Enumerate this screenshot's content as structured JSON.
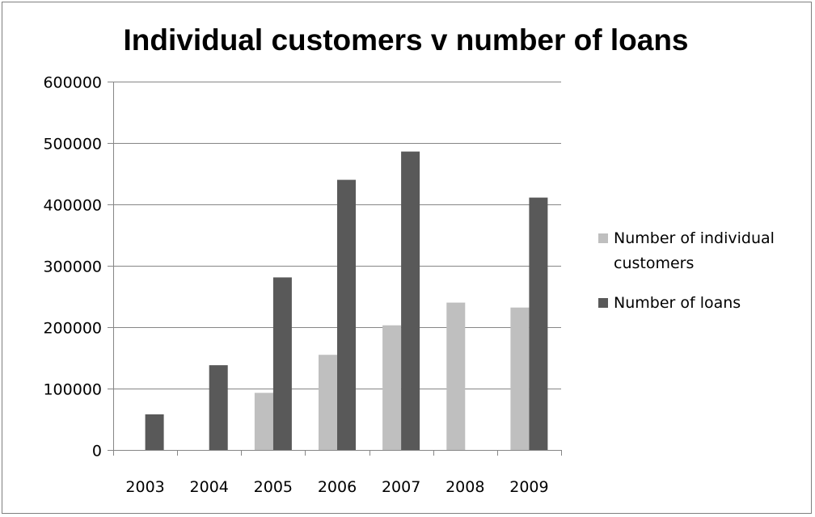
{
  "chart_data": {
    "type": "bar",
    "title": "Individual customers v number of loans",
    "xlabel": "",
    "ylabel": "",
    "categories": [
      "2003",
      "2004",
      "2005",
      "2006",
      "2007",
      "2008",
      "2009"
    ],
    "series": [
      {
        "name": "Number of individual customers",
        "legend_lines": [
          "Number of individual",
          "customers"
        ],
        "color": "#bfbfbf",
        "values": [
          null,
          null,
          93000,
          155000,
          203000,
          240000,
          232000
        ]
      },
      {
        "name": "Number of loans",
        "legend_lines": [
          "Number of loans"
        ],
        "color": "#595959",
        "values": [
          58000,
          138000,
          281000,
          440000,
          486000,
          null,
          411000
        ]
      }
    ],
    "ylim": [
      0,
      600000
    ],
    "yticks": [
      "0",
      "100000",
      "200000",
      "300000",
      "400000",
      "500000",
      "600000"
    ],
    "grid": true,
    "legend_position": "right"
  }
}
